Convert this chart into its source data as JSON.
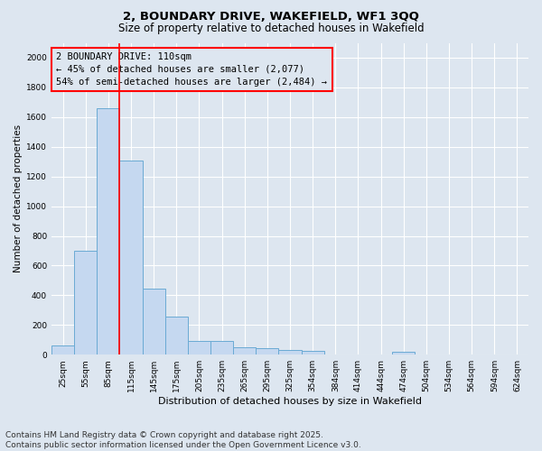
{
  "title1": "2, BOUNDARY DRIVE, WAKEFIELD, WF1 3QQ",
  "title2": "Size of property relative to detached houses in Wakefield",
  "xlabel": "Distribution of detached houses by size in Wakefield",
  "ylabel": "Number of detached properties",
  "categories": [
    "25sqm",
    "55sqm",
    "85sqm",
    "115sqm",
    "145sqm",
    "175sqm",
    "205sqm",
    "235sqm",
    "265sqm",
    "295sqm",
    "325sqm",
    "354sqm",
    "384sqm",
    "414sqm",
    "444sqm",
    "474sqm",
    "504sqm",
    "534sqm",
    "564sqm",
    "594sqm",
    "624sqm"
  ],
  "values": [
    65,
    700,
    1660,
    1310,
    445,
    255,
    90,
    90,
    50,
    45,
    30,
    25,
    0,
    0,
    0,
    18,
    0,
    0,
    0,
    0,
    0
  ],
  "bar_color": "#c5d8f0",
  "bar_edge_color": "#6aaad4",
  "vline_color": "red",
  "vline_x": 2.5,
  "annotation_text": "2 BOUNDARY DRIVE: 110sqm\n← 45% of detached houses are smaller (2,077)\n54% of semi-detached houses are larger (2,484) →",
  "annotation_box_color": "red",
  "annotation_fontsize": 7.5,
  "ylim": [
    0,
    2100
  ],
  "yticks": [
    0,
    200,
    400,
    600,
    800,
    1000,
    1200,
    1400,
    1600,
    1800,
    2000
  ],
  "background_color": "#dde6f0",
  "grid_color": "#ffffff",
  "footer_text": "Contains HM Land Registry data © Crown copyright and database right 2025.\nContains public sector information licensed under the Open Government Licence v3.0.",
  "footer_fontsize": 6.5,
  "title1_fontsize": 9.5,
  "title2_fontsize": 8.5,
  "xlabel_fontsize": 8,
  "ylabel_fontsize": 7.5,
  "tick_fontsize": 6.5
}
